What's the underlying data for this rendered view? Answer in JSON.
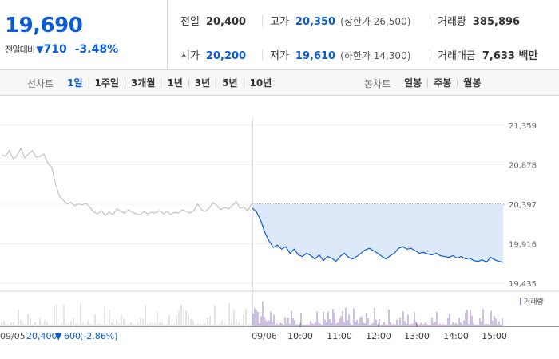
{
  "price": {
    "current": "19,690",
    "change_label": "전일대비",
    "change_arrow": "▼",
    "change_value": "710",
    "change_pct": "-3.48%"
  },
  "stats": {
    "prev_close": {
      "label": "전일",
      "value": "20,400"
    },
    "high": {
      "label": "고가",
      "value": "20,350",
      "sub": "(상한가 26,500)"
    },
    "volume": {
      "label": "거래량",
      "value": "385,896"
    },
    "open": {
      "label": "시가",
      "value": "20,200"
    },
    "low": {
      "label": "저가",
      "value": "19,610",
      "sub": "(하한가 14,300)"
    },
    "trade_value": {
      "label": "거래대금",
      "value": "7,633 백만"
    }
  },
  "tabs": {
    "line_label": "선차트",
    "line_tabs": [
      "1일",
      "1주일",
      "3개월",
      "1년",
      "3년",
      "5년",
      "10년"
    ],
    "candle_label": "봉차트",
    "candle_tabs": [
      "일봉",
      "주봉",
      "월봉"
    ]
  },
  "colors": {
    "accent": "#0b5bd2",
    "prev_line": "#b8b8b8",
    "fill": "#dde8f8",
    "volume_today": "#9b7fc4",
    "volume_prev": "#c8c8c8"
  },
  "chart_data": {
    "type": "line",
    "y_ticks": [
      "21,359",
      "20,878",
      "20,397",
      "19,916",
      "19,435"
    ],
    "ylim": [
      19435,
      21359
    ],
    "prev_close_ref": 20397,
    "x_labels": [
      "09/06",
      "10:00",
      "11:00",
      "12:00",
      "13:00",
      "14:00",
      "15:00"
    ],
    "volume_legend": "거래량",
    "prev_day_footer": {
      "date": "09/05",
      "close": "20,400",
      "arrow": "▼",
      "change": "600",
      "pct": "(-2.86%)"
    },
    "series": [
      {
        "day": "09/05",
        "values": [
          21000,
          20980,
          21050,
          20950,
          20990,
          21080,
          20960,
          21010,
          21050,
          20970,
          20980,
          21010,
          20900,
          20850,
          20650,
          20500,
          20450,
          20400,
          20420,
          20380,
          20400,
          20390,
          20410,
          20360,
          20300,
          20280,
          20320,
          20260,
          20300,
          20270,
          20340,
          20310,
          20290,
          20330,
          20300,
          20280,
          20270,
          20310,
          20280,
          20300,
          20290,
          20320,
          20280,
          20310,
          20270,
          20300,
          20290,
          20330,
          20310,
          20290,
          20320,
          20400,
          20330,
          20310,
          20350,
          20420,
          20380,
          20330,
          20360,
          20340,
          20380,
          20430,
          20350,
          20360,
          20320,
          20400
        ]
      },
      {
        "day": "09/06",
        "values": [
          20350,
          20300,
          20200,
          20050,
          19950,
          19870,
          19900,
          19850,
          19880,
          19800,
          19850,
          19780,
          19760,
          19800,
          19770,
          19730,
          19780,
          19710,
          19760,
          19740,
          19700,
          19760,
          19800,
          19750,
          19730,
          19760,
          19800,
          19840,
          19860,
          19830,
          19800,
          19760,
          19730,
          19770,
          19800,
          19860,
          19880,
          19850,
          19860,
          19830,
          19800,
          19810,
          19790,
          19780,
          19800,
          19770,
          19760,
          19750,
          19770,
          19740,
          19760,
          19730,
          19740,
          19710,
          19700,
          19720,
          19690,
          19750,
          19720,
          19700,
          19690
        ]
      }
    ]
  }
}
